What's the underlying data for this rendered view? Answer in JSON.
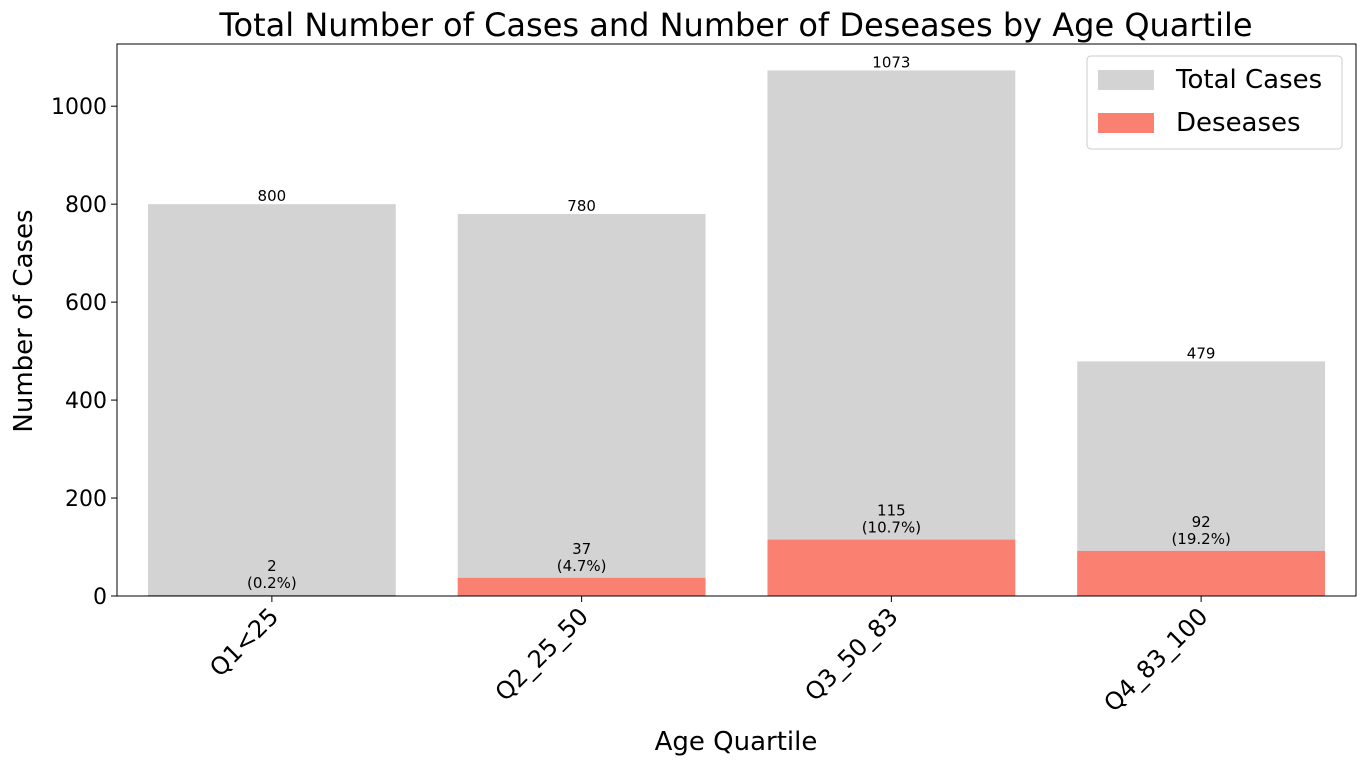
{
  "chart_data": {
    "type": "bar",
    "title": "Total Number of Cases and Number of Deseases by Age Quartile",
    "xlabel": "Age Quartile",
    "ylabel": "Number of Cases",
    "categories": [
      "Q1<25",
      "Q2_25_50",
      "Q3_50_83",
      "Q4_83_100"
    ],
    "series": [
      {
        "name": "Total Cases",
        "color": "#d3d3d3",
        "values": [
          800,
          780,
          1073,
          479
        ]
      },
      {
        "name": "Deseases",
        "color": "#fa8072",
        "values": [
          2,
          37,
          115,
          92
        ]
      }
    ],
    "total_labels": [
      "800",
      "780",
      "1073",
      "479"
    ],
    "desease_labels": [
      {
        "count": "2",
        "pct": "(0.2%)"
      },
      {
        "count": "37",
        "pct": "(4.7%)"
      },
      {
        "count": "115",
        "pct": "(10.7%)"
      },
      {
        "count": "92",
        "pct": "(19.2%)"
      }
    ],
    "yticks": [
      "0",
      "200",
      "400",
      "600",
      "800",
      "1000"
    ],
    "ylim": [
      0,
      1127
    ],
    "legend_position": "top-right",
    "grid": false
  }
}
